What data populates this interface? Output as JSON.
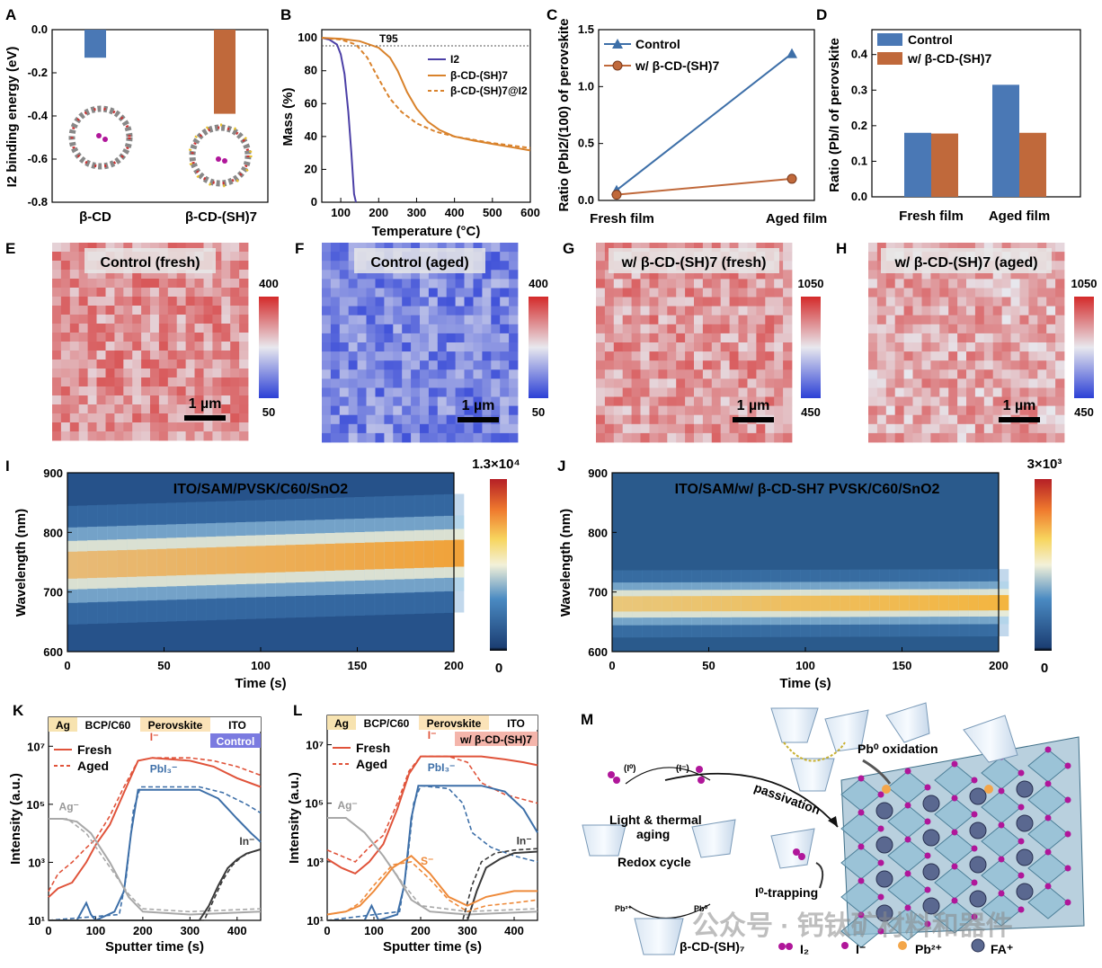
{
  "chart_data": [
    {
      "panel": "A",
      "type": "bar",
      "categories": [
        "β-CD",
        "β-CD-(SH)7"
      ],
      "values": [
        -0.13,
        -0.39
      ],
      "ylabel": "I2 binding energy (eV)",
      "ylim": [
        -0.8,
        0.0
      ],
      "yticks": [
        "0.0",
        "-0.2",
        "-0.4",
        "-0.6",
        "-0.8"
      ],
      "colors": [
        "#4a78b5",
        "#c0693b"
      ]
    },
    {
      "panel": "B",
      "type": "line",
      "xlabel": "Temperature (°C)",
      "ylabel": "Mass (%)",
      "xlim": [
        50,
        600
      ],
      "ylim": [
        0,
        105
      ],
      "xticks": [
        "100",
        "200",
        "300",
        "400",
        "500",
        "600"
      ],
      "yticks": [
        "0",
        "20",
        "40",
        "60",
        "80",
        "100"
      ],
      "annotation": "T95",
      "series": [
        {
          "name": "I2",
          "color": "#4b3fa6",
          "dash": false,
          "x": [
            50,
            70,
            90,
            100,
            110,
            120,
            128,
            135,
            140
          ],
          "y": [
            100,
            99,
            96,
            90,
            78,
            55,
            30,
            5,
            0
          ]
        },
        {
          "name": "β-CD-(SH)7",
          "color": "#d9822b",
          "dash": false,
          "x": [
            50,
            100,
            150,
            200,
            230,
            250,
            275,
            300,
            330,
            360,
            400,
            450,
            500,
            550,
            600
          ],
          "y": [
            100,
            99.5,
            98,
            94,
            88,
            80,
            67,
            57,
            49,
            44,
            40,
            37.5,
            35.5,
            33.5,
            31.5
          ]
        },
        {
          "name": "β-CD-(SH)7@I2",
          "color": "#d9822b",
          "dash": true,
          "x": [
            50,
            100,
            140,
            170,
            200,
            230,
            260,
            300,
            350,
            400,
            450,
            500,
            550,
            600
          ],
          "y": [
            100,
            99,
            96,
            88,
            75,
            63,
            55,
            48,
            43,
            40,
            38,
            36,
            34.5,
            33
          ]
        }
      ]
    },
    {
      "panel": "C",
      "type": "line",
      "categories": [
        "Fresh film",
        "Aged film"
      ],
      "ylabel": "Ratio (PbI2/(100) of perovskite",
      "ylim": [
        0,
        1.5
      ],
      "yticks": [
        "0.0",
        "0.5",
        "1.0",
        "1.5"
      ],
      "series": [
        {
          "name": "Control",
          "values": [
            0.09,
            1.29
          ],
          "color": "#3d6fa8"
        },
        {
          "name": "w/ β-CD-(SH)7",
          "values": [
            0.05,
            0.19
          ],
          "color": "#c0693b"
        }
      ]
    },
    {
      "panel": "D",
      "type": "bar",
      "categories": [
        "Fresh film",
        "Aged film"
      ],
      "ylabel": "Ratio (Pb/I of perovskite",
      "ylim": [
        0,
        0.47
      ],
      "yticks": [
        "0.0",
        "0.1",
        "0.2",
        "0.3",
        "0.4"
      ],
      "series": [
        {
          "name": "Control",
          "values": [
            0.18,
            0.315
          ],
          "color": "#4a78b5"
        },
        {
          "name": "w/ β-CD-(SH)7",
          "values": [
            0.178,
            0.18
          ],
          "color": "#c0693b"
        }
      ]
    },
    {
      "panel": "E",
      "type": "heatmap",
      "title": "Control (fresh)",
      "colorbar": {
        "max": "400",
        "min": "50"
      },
      "scalebar": "1 µm",
      "level": 0.72
    },
    {
      "panel": "F",
      "type": "heatmap",
      "title": "Control (aged)",
      "colorbar": {
        "max": "400",
        "min": "50"
      },
      "scalebar": "1 µm",
      "level": 0.22
    },
    {
      "panel": "G",
      "type": "heatmap",
      "title": "w/ β-CD-(SH)7 (fresh)",
      "colorbar": {
        "max": "1050",
        "min": "450"
      },
      "scalebar": "1 µm",
      "level": 0.7
    },
    {
      "panel": "H",
      "type": "heatmap",
      "title": "w/ β-CD-(SH)7 (aged)",
      "colorbar": {
        "max": "1050",
        "min": "450"
      },
      "scalebar": "1 µm",
      "level": 0.66
    },
    {
      "panel": "I",
      "type": "heatmap",
      "title": "ITO/SAM/PVSK/C60/SnO2",
      "xlabel": "Time (s)",
      "ylabel": "Wavelength (nm)",
      "xlim": [
        0,
        200
      ],
      "ylim": [
        600,
        900
      ],
      "xticks": [
        "0",
        "50",
        "100",
        "150",
        "200"
      ],
      "yticks": [
        "600",
        "700",
        "800",
        "900"
      ],
      "colorbar": {
        "max": "1.3×10⁴",
        "min": "0"
      },
      "peak_start_nm": 745,
      "peak_end_nm": 765
    },
    {
      "panel": "J",
      "type": "heatmap",
      "title": "ITO/SAM/w/ β-CD-SH7 PVSK/C60/SnO2",
      "xlabel": "Time (s)",
      "ylabel": "Wavelength (nm)",
      "xlim": [
        0,
        200
      ],
      "ylim": [
        600,
        900
      ],
      "xticks": [
        "0",
        "50",
        "100",
        "150",
        "200"
      ],
      "yticks": [
        "600",
        "700",
        "800",
        "900"
      ],
      "colorbar": {
        "max": "3×10³",
        "min": "0"
      },
      "peak_start_nm": 680,
      "peak_end_nm": 682
    },
    {
      "panel": "K",
      "type": "line",
      "xlabel": "Sputter time (s)",
      "ylabel": "Intensity (a.u.)",
      "xlim": [
        0,
        450
      ],
      "ylog": true,
      "ylim_exp": [
        1,
        8
      ],
      "xticks": [
        "0",
        "100",
        "200",
        "300",
        "400"
      ],
      "yticks": [
        "10¹",
        "10³",
        "10⁵",
        "10⁷"
      ],
      "layers": [
        "Ag",
        "BCP/C60",
        "Perovskite",
        "ITO"
      ],
      "tag": "Control",
      "legend": [
        "Fresh",
        "Aged"
      ],
      "labels": [
        "I⁻",
        "PbI₃⁻",
        "Ag⁻",
        "In⁻"
      ],
      "series": [
        {
          "name": "I-",
          "color": "#e0533a",
          "x": [
            0,
            20,
            50,
            80,
            100,
            130,
            160,
            190,
            220,
            300,
            350,
            400,
            450
          ],
          "y": [
            1.8,
            2.1,
            2.3,
            3.0,
            3.6,
            4.3,
            5.4,
            6.5,
            6.6,
            6.5,
            6.3,
            5.9,
            5.6
          ],
          "x2": [
            0,
            20,
            50,
            80,
            100,
            130,
            160,
            190,
            220,
            300,
            350,
            400,
            450
          ],
          "y2": [
            2.0,
            2.6,
            3.0,
            3.5,
            3.8,
            4.6,
            5.6,
            6.5,
            6.6,
            6.6,
            6.5,
            6.3,
            6.0
          ]
        },
        {
          "name": "PbI3-",
          "color": "#3d6fa8",
          "x": [
            0,
            60,
            80,
            90,
            100,
            140,
            160,
            175,
            190,
            320,
            360,
            400,
            430,
            450
          ],
          "y": [
            1.0,
            1.0,
            1.6,
            1.2,
            1.0,
            1.3,
            2.0,
            4.0,
            5.5,
            5.5,
            5.2,
            4.5,
            4.0,
            3.7
          ],
          "x2": [
            0,
            150,
            165,
            180,
            195,
            320,
            370,
            420,
            450
          ],
          "y2": [
            1.0,
            1.2,
            2.5,
            4.8,
            5.6,
            5.6,
            5.4,
            5.0,
            4.7
          ]
        },
        {
          "name": "Ag-",
          "color": "#a8a8a8",
          "x": [
            0,
            30,
            60,
            90,
            110,
            130,
            150,
            170,
            200,
            300,
            450
          ],
          "y": [
            4.5,
            4.5,
            4.4,
            4.0,
            3.5,
            3.0,
            2.4,
            1.8,
            1.3,
            1.2,
            1.3
          ],
          "x2": [
            0,
            40,
            80,
            110,
            140,
            170,
            200,
            300,
            450
          ],
          "y2": [
            4.5,
            4.5,
            4.0,
            3.3,
            2.6,
            1.9,
            1.4,
            1.3,
            1.4
          ]
        },
        {
          "name": "In-",
          "color": "#3a3a3a",
          "x": [
            0,
            320,
            340,
            360,
            380,
            400,
            420,
            450
          ],
          "y": [
            1.0,
            1.0,
            1.5,
            2.2,
            2.8,
            3.1,
            3.3,
            3.45
          ],
          "x2": [
            0,
            330,
            350,
            370,
            390,
            410,
            430,
            450
          ],
          "y2": [
            1.0,
            1.0,
            1.7,
            2.4,
            2.9,
            3.2,
            3.35,
            3.45
          ]
        }
      ]
    },
    {
      "panel": "L",
      "type": "line",
      "xlabel": "Sputter time (s)",
      "ylabel": "Intensity (a.u.)",
      "xlim": [
        0,
        450
      ],
      "ylog": true,
      "ylim_exp": [
        1,
        8
      ],
      "xticks": [
        "0",
        "100",
        "200",
        "300",
        "400"
      ],
      "yticks": [
        "10¹",
        "10³",
        "10⁵",
        "10⁷"
      ],
      "layers": [
        "Ag",
        "BCP/C60",
        "Perovskite",
        "ITO"
      ],
      "tag": "w/ β-CD-(SH)7",
      "legend": [
        "Fresh",
        "Aged"
      ],
      "labels": [
        "I⁻",
        "PbI₃⁻",
        "Ag⁻",
        "In⁻",
        "S⁻"
      ],
      "series": [
        {
          "name": "I-",
          "color": "#e0533a",
          "x": [
            0,
            30,
            60,
            90,
            120,
            150,
            175,
            200,
            260,
            330,
            380,
            420,
            450
          ],
          "y": [
            3.1,
            2.8,
            2.6,
            3.0,
            3.6,
            4.8,
            6.0,
            6.6,
            6.6,
            6.6,
            6.5,
            6.4,
            6.3
          ],
          "x2": [
            0,
            30,
            60,
            90,
            120,
            150,
            175,
            200,
            260,
            300,
            330,
            380,
            450
          ],
          "y2": [
            3.4,
            3.2,
            3.0,
            3.5,
            3.9,
            5.0,
            6.1,
            6.6,
            6.6,
            6.4,
            5.7,
            5.3,
            5.0
          ]
        },
        {
          "name": "PbI3-",
          "color": "#3d6fa8",
          "x": [
            0,
            80,
            95,
            110,
            150,
            165,
            180,
            195,
            330,
            380,
            420,
            450
          ],
          "y": [
            1.0,
            1.0,
            1.5,
            1.0,
            1.2,
            2.2,
            4.5,
            5.6,
            5.6,
            5.4,
            4.8,
            4.0
          ],
          "x2": [
            0,
            155,
            170,
            185,
            200,
            260,
            290,
            310,
            350,
            400,
            450
          ],
          "y2": [
            1.0,
            1.3,
            2.8,
            5.0,
            5.6,
            5.5,
            5.0,
            4.0,
            3.5,
            3.2,
            3.0
          ]
        },
        {
          "name": "Ag-",
          "color": "#a8a8a8",
          "x": [
            0,
            40,
            80,
            120,
            150,
            180,
            220,
            300,
            450
          ],
          "y": [
            4.5,
            4.5,
            4.0,
            3.2,
            2.5,
            1.7,
            1.3,
            1.2,
            1.3
          ],
          "x2": [
            0,
            40,
            80,
            120,
            160,
            200,
            300,
            450
          ],
          "y2": [
            4.5,
            4.5,
            4.0,
            3.2,
            2.3,
            1.5,
            1.3,
            1.4
          ]
        },
        {
          "name": "In-",
          "color": "#3a3a3a",
          "x": [
            0,
            300,
            320,
            340,
            370,
            400,
            450
          ],
          "y": [
            1.0,
            1.0,
            2.0,
            2.8,
            3.1,
            3.3,
            3.35
          ],
          "x2": [
            0,
            290,
            310,
            330,
            360,
            400,
            450
          ],
          "y2": [
            1.0,
            1.0,
            2.2,
            3.0,
            3.3,
            3.4,
            3.45
          ]
        },
        {
          "name": "S-",
          "color": "#ee8a3a",
          "x": [
            0,
            40,
            70,
            100,
            140,
            180,
            220,
            260,
            300,
            340,
            400,
            450
          ],
          "y": [
            1.2,
            1.3,
            1.5,
            2.0,
            2.8,
            3.2,
            2.6,
            1.8,
            1.5,
            1.8,
            2.0,
            2.0
          ],
          "x2": [
            0,
            40,
            70,
            100,
            140,
            180,
            220,
            260,
            300,
            340,
            400,
            450
          ],
          "y2": [
            1.2,
            1.3,
            1.6,
            2.2,
            2.9,
            3.0,
            2.4,
            1.7,
            1.3,
            1.5,
            1.6,
            1.7
          ]
        }
      ]
    },
    {
      "panel": "M",
      "type": "diagram",
      "labels": {
        "oxidation": "Pb⁰ oxidation",
        "passivation": "passivation",
        "light": "Light & thermal",
        "aging": "aging",
        "redox": "Redox cycle",
        "trap": "I⁰-trapping",
        "mol": "β-CD-(SH)₇",
        "i0": "(I⁰)",
        "iminus": "(I⁻)",
        "pb2": "Pb²⁺",
        "pb0": "Pb⁰"
      },
      "legend": [
        "I₂",
        "I⁻",
        "Pb²⁺",
        "FA⁺"
      ],
      "watermark": "公众号 · 钙钛矿材料和器件"
    }
  ],
  "panel_letters": [
    "A",
    "B",
    "C",
    "D",
    "E",
    "F",
    "G",
    "H",
    "I",
    "J",
    "K",
    "L",
    "M"
  ]
}
